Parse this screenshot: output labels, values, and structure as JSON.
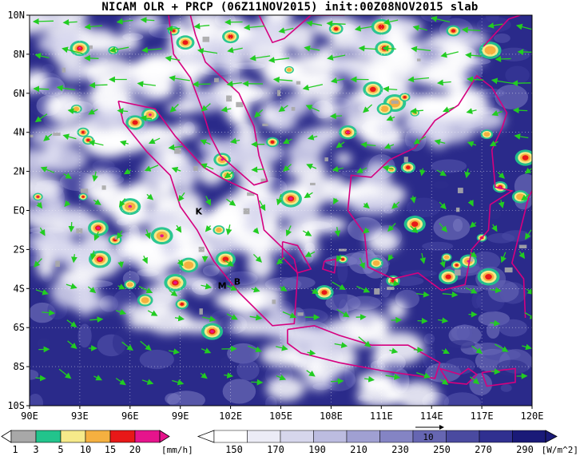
{
  "title": "NICAM OLR + PRCP (06Z11NOV2015) init:00Z08NOV2015 slab",
  "map": {
    "lon_range": [
      90,
      120
    ],
    "lat_range": [
      -10,
      10
    ],
    "x_ticks": [
      "90E",
      "93E",
      "96E",
      "99E",
      "102E",
      "105E",
      "108E",
      "111E",
      "114E",
      "117E",
      "120E"
    ],
    "y_ticks": [
      "10N",
      "8N",
      "6N",
      "4N",
      "2N",
      "EQ",
      "2S",
      "4S",
      "6S",
      "8S",
      "10S"
    ],
    "place_labels": [
      {
        "text": "K",
        "lon": 100.1,
        "lat": -0.2
      },
      {
        "text": "M",
        "lon": 101.5,
        "lat": -4.0
      },
      {
        "text": "B",
        "lon": 102.4,
        "lat": -3.8
      }
    ],
    "colors": {
      "coast": "#d6007f",
      "wind_vector": "#22cc22",
      "olr_clear": "#2a2a8a",
      "cloud": "#ffffff"
    }
  },
  "prcp_legend": {
    "labels": [
      "1",
      "3",
      "5",
      "10",
      "15",
      "20"
    ],
    "unit": "[mm/h]",
    "colors": [
      "#a8a8a8",
      "#22c48c",
      "#f6ea8a",
      "#f5b040",
      "#e81818",
      "#e6148c"
    ]
  },
  "olr_legend": {
    "labels": [
      "150",
      "170",
      "190",
      "210",
      "230",
      "250",
      "270",
      "290"
    ],
    "unit": "[W/m^2]",
    "vector_label": "10",
    "colors": [
      "#ffffff",
      "#ececf6",
      "#d6d6ec",
      "#bcbce0",
      "#a0a0d2",
      "#8484c4",
      "#6666b2",
      "#4a4aa0",
      "#303090",
      "#1a1a78"
    ]
  }
}
